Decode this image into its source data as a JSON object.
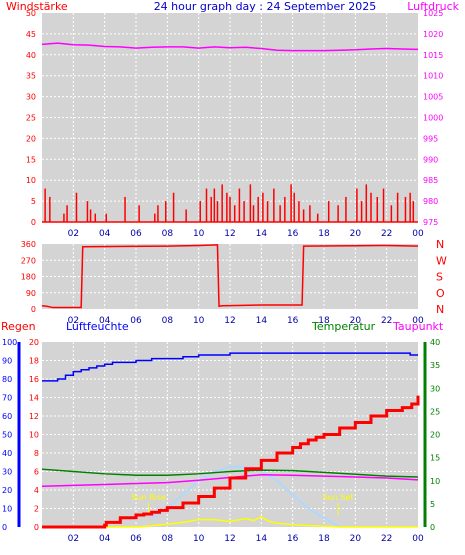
{
  "title": "24 hour graph day : 24 September 2025",
  "x_ticks": [
    "02",
    "04",
    "06",
    "08",
    "10",
    "12",
    "14",
    "16",
    "18",
    "20",
    "22",
    "00"
  ],
  "colors": {
    "plot_bg": "#d4d4d4",
    "grid": "#ffffff",
    "red": "#ff0000",
    "magenta": "#ff00ff",
    "blue": "#0000ff",
    "darkblue": "#0000cc",
    "green": "#008000",
    "yellow": "#ffff00",
    "lightblue": "#b0d8ff",
    "dark_ticks": "#0000aa"
  },
  "chart_data": [
    {
      "type": "bar",
      "name": "wind-pressure",
      "left_label": "Windstärke",
      "right_label": "Luftdruck",
      "left_ticks": [
        "50",
        "45",
        "40",
        "35",
        "30",
        "25",
        "20",
        "15",
        "10",
        "5",
        "0"
      ],
      "right_ticks": [
        "1025",
        "1020",
        "1015",
        "1010",
        "1005",
        "1000",
        "995",
        "990",
        "985",
        "980",
        "975"
      ],
      "ylim_left": [
        0,
        50
      ],
      "ylim_right": [
        975,
        1025
      ],
      "xlim": [
        0,
        24
      ],
      "pressure": {
        "x": [
          0,
          1,
          2,
          3,
          4,
          5,
          6,
          7,
          8,
          9,
          10,
          11,
          12,
          13,
          14,
          15,
          16,
          17,
          18,
          19,
          20,
          21,
          22,
          23,
          24
        ],
        "y": [
          1017.5,
          1017.8,
          1017.4,
          1017.3,
          1017.0,
          1016.9,
          1016.6,
          1016.8,
          1016.9,
          1016.9,
          1016.6,
          1016.9,
          1016.7,
          1016.8,
          1016.5,
          1016.1,
          1016.0,
          1016.0,
          1016.0,
          1016.1,
          1016.2,
          1016.4,
          1016.5,
          1016.4,
          1016.3
        ]
      },
      "wind": {
        "x": [
          0.2,
          0.5,
          1.4,
          1.6,
          2.2,
          2.9,
          3.1,
          3.4,
          4.1,
          5.3,
          6.2,
          7.2,
          7.4,
          7.9,
          8.4,
          9.2,
          10.1,
          10.5,
          10.8,
          11.0,
          11.2,
          11.5,
          11.8,
          12.0,
          12.3,
          12.6,
          12.9,
          13.3,
          13.5,
          13.8,
          14.1,
          14.4,
          14.8,
          15.2,
          15.5,
          15.9,
          16.1,
          16.4,
          16.7,
          17.1,
          17.6,
          18.3,
          18.9,
          19.4,
          20.1,
          20.4,
          20.7,
          21.0,
          21.4,
          21.8,
          22.3,
          22.7,
          23.2,
          23.5,
          23.7
        ],
        "y": [
          8,
          6,
          2,
          4,
          7,
          5,
          3,
          2,
          2,
          6,
          4,
          2,
          4,
          5,
          7,
          3,
          5,
          8,
          6,
          8,
          5,
          9,
          7,
          6,
          4,
          8,
          5,
          9,
          4,
          6,
          7,
          5,
          8,
          4,
          6,
          9,
          7,
          5,
          3,
          4,
          2,
          5,
          4,
          6,
          8,
          5,
          9,
          7,
          6,
          8,
          4,
          7,
          6,
          7,
          5
        ]
      }
    },
    {
      "type": "line",
      "name": "wind-direction",
      "left_ticks": [
        "360",
        "270",
        "180",
        "90",
        "0"
      ],
      "right_ticks": [
        "N",
        "W",
        "S",
        "O",
        "N"
      ],
      "ylim": [
        0,
        360
      ],
      "xlim": [
        0,
        24
      ],
      "direction": {
        "x": [
          0,
          0.3,
          0.7,
          2.5,
          2.6,
          8,
          10,
          11.2,
          11.3,
          11.5,
          14,
          16.6,
          16.7,
          20,
          22,
          24
        ],
        "y": [
          18,
          15,
          8,
          8,
          345,
          348,
          352,
          355,
          15,
          18,
          22,
          22,
          348,
          350,
          352,
          348
        ]
      }
    },
    {
      "type": "line",
      "name": "rain-humidity-temp-dew",
      "labels": {
        "regen": "Regen",
        "luftfeuchte": "Luftfeuchte",
        "temperatur": "Temperatur",
        "taupunkt": "Taupunkt"
      },
      "hum_ticks": [
        "100",
        "90",
        "80",
        "70",
        "60",
        "50",
        "40",
        "30",
        "20",
        "10",
        "0"
      ],
      "rain_ticks": [
        "20",
        "18",
        "16",
        "14",
        "12",
        "10",
        "8",
        "6",
        "4",
        "2",
        "0"
      ],
      "temp_ticks": [
        "40",
        "35",
        "30",
        "25",
        "20",
        "15",
        "10",
        "5",
        "0"
      ],
      "annotations": {
        "sunrise": "Sun Rise",
        "sunset": "Sun Set"
      },
      "sunrise_hour": 6.8,
      "sunset_hour": 18.9,
      "xlim": [
        0,
        24
      ],
      "hum_lim": [
        0,
        100
      ],
      "temp_lim": [
        0,
        40
      ],
      "humidity": {
        "x": [
          0,
          0.5,
          1,
          1.5,
          2,
          2.5,
          3,
          3.5,
          4,
          4.5,
          5,
          6,
          7,
          8,
          9,
          10,
          11,
          12,
          14,
          16,
          18,
          20,
          22,
          23,
          23.5,
          24
        ],
        "y": [
          79,
          79,
          80,
          82,
          84,
          85,
          86,
          87,
          88,
          89,
          89,
          90,
          91,
          91,
          92,
          93,
          93,
          94,
          94,
          94,
          94,
          94,
          94,
          94,
          93,
          93
        ]
      },
      "temperature": {
        "x": [
          0,
          2,
          4,
          6,
          8,
          10,
          12,
          14,
          16,
          18,
          20,
          22,
          24
        ],
        "y": [
          12.5,
          12,
          11.5,
          11.2,
          11.2,
          11.5,
          12,
          12.3,
          12.2,
          11.8,
          11.4,
          11.0,
          10.8
        ]
      },
      "dewpoint": {
        "x": [
          0,
          2,
          4,
          6,
          8,
          10,
          12,
          14,
          16,
          18,
          20,
          22,
          24
        ],
        "y": [
          8.8,
          9,
          9.2,
          9.4,
          9.6,
          10.1,
          10.7,
          11.3,
          11.2,
          11.0,
          10.8,
          10.6,
          10.2
        ]
      },
      "rain": {
        "x": [
          0,
          3,
          4,
          4.1,
          5,
          6,
          6.5,
          7,
          7.5,
          8,
          9,
          10,
          11,
          12,
          13,
          14,
          15,
          16,
          16.5,
          17,
          17.5,
          18,
          19,
          20,
          21,
          22,
          23,
          23.6,
          24
        ],
        "y": [
          0,
          0,
          0.2,
          0.5,
          1,
          1.3,
          1.4,
          1.6,
          1.8,
          2.1,
          2.6,
          3.3,
          4.2,
          5.3,
          6.3,
          7.2,
          8.0,
          8.6,
          9.0,
          9.4,
          9.7,
          10.0,
          10.7,
          11.3,
          12.0,
          12.6,
          12.9,
          13.3,
          14.2
        ]
      },
      "solar": {
        "x": [
          0,
          6.2,
          7,
          8,
          9,
          10,
          11,
          12,
          13,
          13.5,
          14,
          14.5,
          15,
          16,
          17,
          18,
          19,
          24
        ],
        "y": [
          0,
          0,
          0.3,
          0.6,
          1.0,
          1.6,
          1.6,
          1.2,
          1.8,
          1.4,
          2.2,
          1.2,
          0.8,
          0.5,
          0.3,
          0.2,
          0,
          0
        ]
      },
      "uv_arc": {
        "x": [
          7,
          8,
          9,
          10,
          11,
          12,
          13,
          14,
          15,
          16,
          17,
          18,
          19
        ],
        "y": [
          2,
          4,
          7,
          10,
          12,
          13,
          13,
          12,
          10,
          7,
          4,
          2,
          0
        ]
      }
    }
  ]
}
